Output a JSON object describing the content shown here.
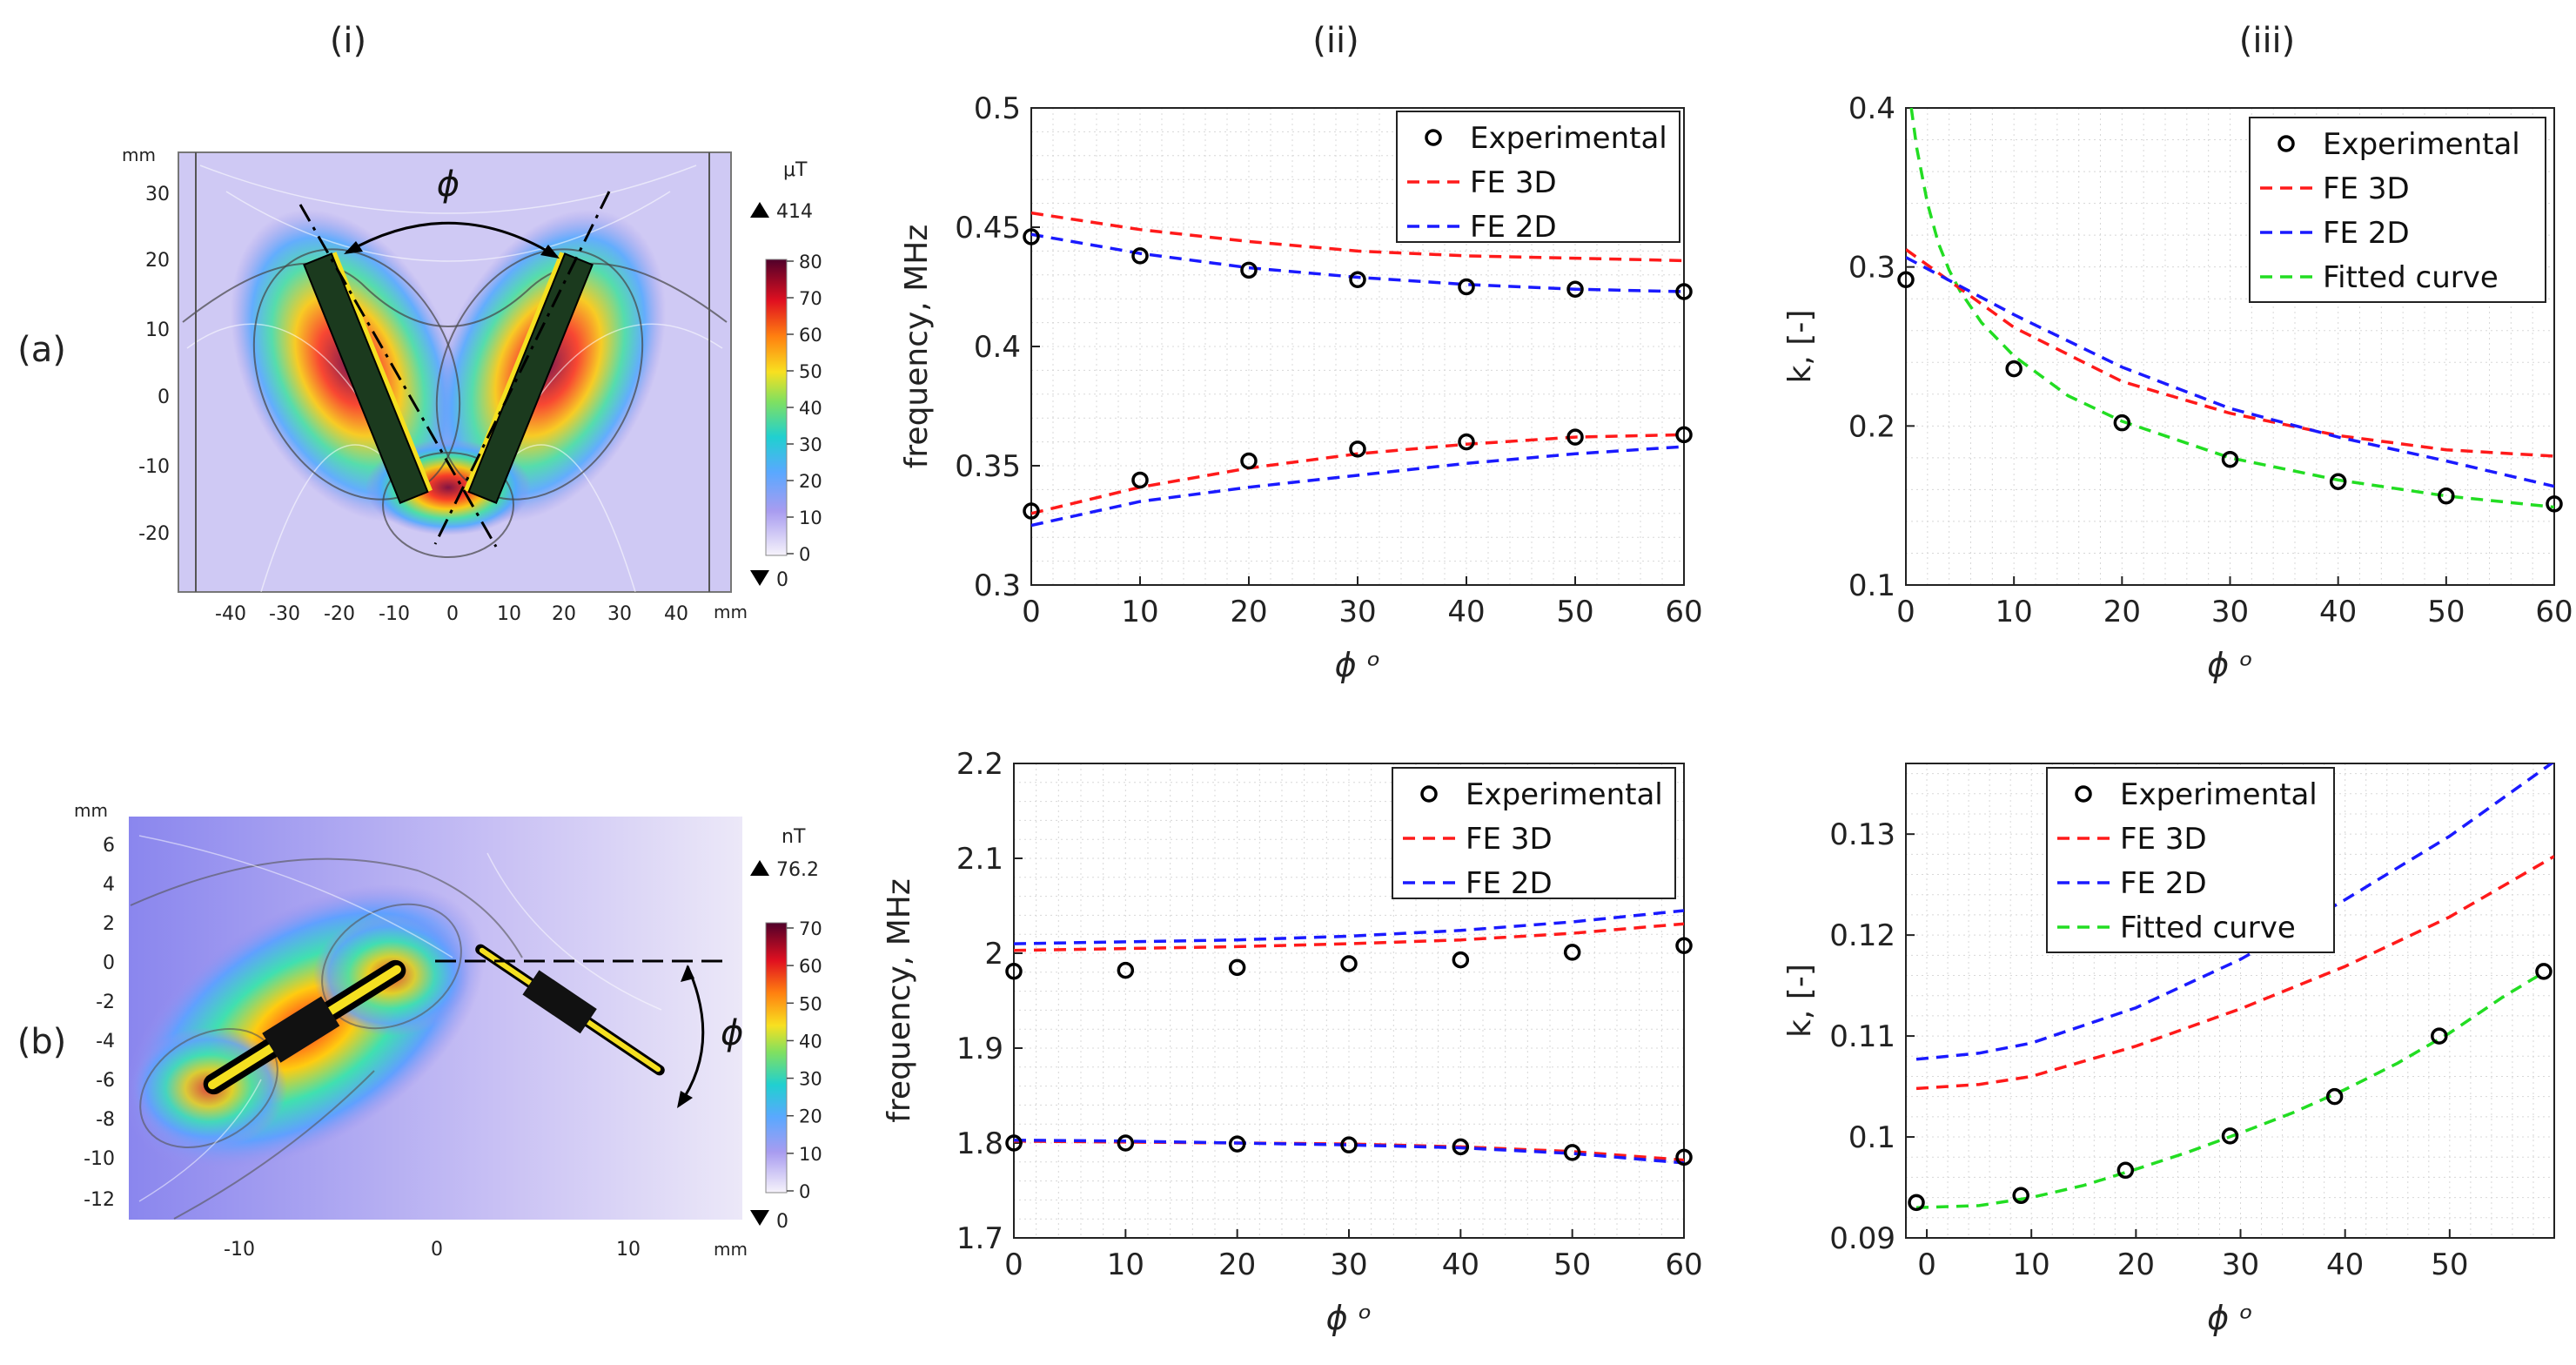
{
  "columns": {
    "i": "(i)",
    "ii": "(ii)",
    "iii": "(iii)"
  },
  "rows": {
    "a": "(a)",
    "b": "(b)"
  },
  "maps": [
    {
      "id": "a",
      "unit_label": "mm",
      "phi_label": "ϕ",
      "x_ticks": [
        "-40",
        "-30",
        "-20",
        "-10",
        "0",
        "10",
        "20",
        "30",
        "40"
      ],
      "y_ticks": [
        "30",
        "20",
        "10",
        "0",
        "-10",
        "-20"
      ],
      "colorbar": {
        "unit": "μT",
        "max_marker": "414",
        "min_marker": "0",
        "ticks": [
          "80",
          "70",
          "60",
          "50",
          "40",
          "30",
          "20",
          "10",
          "0"
        ]
      }
    },
    {
      "id": "b",
      "unit_label": "mm",
      "phi_label": "ϕ",
      "x_ticks": [
        "-10",
        "0",
        "10"
      ],
      "y_ticks": [
        "6",
        "4",
        "2",
        "0",
        "-2",
        "-4",
        "-6",
        "-8",
        "-10",
        "-12"
      ],
      "colorbar": {
        "unit": "nT",
        "max_marker": "76.2",
        "min_marker": "0",
        "ticks": [
          "70",
          "60",
          "50",
          "40",
          "30",
          "20",
          "10",
          "0"
        ]
      }
    }
  ],
  "chart_data": [
    {
      "id": "a-ii",
      "type": "line",
      "xlabel": "ϕ ᵒ",
      "ylabel": "frequency, MHz",
      "xlim": [
        0,
        60
      ],
      "ylim": [
        0.3,
        0.5
      ],
      "xticks": [
        0,
        10,
        20,
        30,
        40,
        50,
        60
      ],
      "yticks": [
        0.3,
        0.35,
        0.4,
        0.45,
        0.5
      ],
      "ytick_labels": [
        "0.3",
        "0.35",
        "0.4",
        "0.45",
        "0.5"
      ],
      "legend": [
        "Experimental",
        "FE 3D",
        "FE 2D"
      ],
      "experimental": [
        {
          "x": [
            0,
            10,
            20,
            30,
            40,
            50,
            60
          ],
          "y": [
            0.446,
            0.438,
            0.432,
            0.428,
            0.425,
            0.424,
            0.423
          ]
        },
        {
          "x": [
            0,
            10,
            20,
            30,
            40,
            50,
            60
          ],
          "y": [
            0.331,
            0.344,
            0.352,
            0.357,
            0.36,
            0.362,
            0.363
          ]
        }
      ],
      "fe3d": [
        {
          "x": [
            0,
            10,
            20,
            30,
            40,
            50,
            60
          ],
          "y": [
            0.456,
            0.449,
            0.444,
            0.44,
            0.438,
            0.437,
            0.436
          ]
        },
        {
          "x": [
            0,
            10,
            20,
            30,
            40,
            50,
            60
          ],
          "y": [
            0.33,
            0.341,
            0.349,
            0.355,
            0.359,
            0.362,
            0.363
          ]
        }
      ],
      "fe2d": [
        {
          "x": [
            0,
            10,
            20,
            30,
            40,
            50,
            60
          ],
          "y": [
            0.447,
            0.439,
            0.433,
            0.429,
            0.426,
            0.424,
            0.423
          ]
        },
        {
          "x": [
            0,
            10,
            20,
            30,
            40,
            50,
            60
          ],
          "y": [
            0.325,
            0.335,
            0.341,
            0.346,
            0.351,
            0.355,
            0.358
          ]
        }
      ]
    },
    {
      "id": "a-iii",
      "type": "line",
      "xlabel": "ϕ ᵒ",
      "ylabel": "k, [-]",
      "xlim": [
        0,
        60
      ],
      "ylim": [
        0.1,
        0.4
      ],
      "xticks": [
        0,
        10,
        20,
        30,
        40,
        50,
        60
      ],
      "yticks": [
        0.1,
        0.2,
        0.3,
        0.4
      ],
      "ytick_labels": [
        "0.1",
        "0.2",
        "0.3",
        "0.4"
      ],
      "legend": [
        "Experimental",
        "FE 3D",
        "FE 2D",
        "Fitted curve"
      ],
      "experimental": [
        {
          "x": [
            0,
            10,
            20,
            30,
            40,
            50,
            60
          ],
          "y": [
            0.292,
            0.236,
            0.202,
            0.179,
            0.165,
            0.156,
            0.151
          ]
        }
      ],
      "fe3d": [
        {
          "x": [
            0,
            10,
            20,
            30,
            40,
            50,
            60
          ],
          "y": [
            0.311,
            0.262,
            0.228,
            0.208,
            0.194,
            0.185,
            0.181
          ]
        }
      ],
      "fe2d": [
        {
          "x": [
            0,
            10,
            20,
            30,
            40,
            50,
            60
          ],
          "y": [
            0.306,
            0.27,
            0.237,
            0.211,
            0.193,
            0.178,
            0.162
          ]
        }
      ],
      "fitted": [
        {
          "x": [
            0.5,
            1,
            2,
            3,
            4,
            5,
            7,
            10,
            15,
            20,
            30,
            40,
            50,
            60
          ],
          "y": [
            0.4,
            0.375,
            0.34,
            0.315,
            0.298,
            0.285,
            0.265,
            0.244,
            0.219,
            0.203,
            0.18,
            0.166,
            0.156,
            0.149
          ]
        }
      ]
    },
    {
      "id": "b-ii",
      "type": "line",
      "xlabel": "ϕ ᵒ",
      "ylabel": "frequency, MHz",
      "xlim": [
        0,
        60
      ],
      "ylim": [
        1.7,
        2.2
      ],
      "xticks": [
        0,
        10,
        20,
        30,
        40,
        50,
        60
      ],
      "yticks": [
        1.7,
        1.8,
        1.9,
        2,
        2.1,
        2.2
      ],
      "ytick_labels": [
        "1.7",
        "1.8",
        "1.9",
        "2",
        "2.1",
        "2.2"
      ],
      "legend": [
        "Experimental",
        "FE 3D",
        "FE 2D"
      ],
      "experimental": [
        {
          "x": [
            0,
            10,
            20,
            30,
            40,
            50,
            60
          ],
          "y": [
            1.981,
            1.982,
            1.985,
            1.989,
            1.993,
            2.001,
            2.008
          ]
        },
        {
          "x": [
            0,
            10,
            20,
            30,
            40,
            50,
            60
          ],
          "y": [
            1.8,
            1.8,
            1.799,
            1.798,
            1.796,
            1.79,
            1.785
          ]
        }
      ],
      "fe3d": [
        {
          "x": [
            0,
            10,
            20,
            30,
            40,
            50,
            60
          ],
          "y": [
            2.003,
            2.005,
            2.007,
            2.01,
            2.014,
            2.021,
            2.031
          ]
        },
        {
          "x": [
            0,
            10,
            20,
            30,
            40,
            50,
            60
          ],
          "y": [
            1.802,
            1.801,
            1.8,
            1.799,
            1.796,
            1.791,
            1.782
          ]
        }
      ],
      "fe2d": [
        {
          "x": [
            0,
            10,
            20,
            30,
            40,
            50,
            60
          ],
          "y": [
            2.01,
            2.012,
            2.014,
            2.018,
            2.024,
            2.033,
            2.045
          ]
        },
        {
          "x": [
            0,
            10,
            20,
            30,
            40,
            50,
            60
          ],
          "y": [
            1.803,
            1.802,
            1.8,
            1.798,
            1.795,
            1.789,
            1.779
          ]
        }
      ]
    },
    {
      "id": "b-iii",
      "type": "line",
      "xlabel": "ϕ ᵒ",
      "ylabel": "k, [-]",
      "xlim": [
        -2,
        60
      ],
      "ylim": [
        0.09,
        0.137
      ],
      "xticks": [
        0,
        10,
        20,
        30,
        40,
        50
      ],
      "yticks": [
        0.09,
        0.1,
        0.11,
        0.12,
        0.13
      ],
      "ytick_labels": [
        "0.09",
        "0.1",
        "0.11",
        "0.12",
        "0.13"
      ],
      "legend": [
        "Experimental",
        "FE 3D",
        "FE 2D",
        "Fitted curve"
      ],
      "experimental": [
        {
          "x": [
            -1,
            9,
            19,
            29,
            39,
            49,
            59
          ],
          "y": [
            0.0935,
            0.0942,
            0.0967,
            0.1001,
            0.104,
            0.11,
            0.1164
          ]
        }
      ],
      "fe3d": [
        {
          "x": [
            -1,
            5,
            10,
            20,
            30,
            40,
            50,
            60
          ],
          "y": [
            0.1048,
            0.1052,
            0.106,
            0.109,
            0.1127,
            0.1169,
            0.1218,
            0.1278
          ]
        }
      ],
      "fe2d": [
        {
          "x": [
            -1,
            5,
            10,
            20,
            30,
            40,
            50,
            60
          ],
          "y": [
            0.1077,
            0.1083,
            0.1093,
            0.1128,
            0.1176,
            0.1235,
            0.1298,
            0.1372
          ]
        }
      ],
      "fitted": [
        {
          "x": [
            -1,
            5,
            10,
            15,
            20,
            25,
            30,
            35,
            40,
            45,
            50,
            55,
            59
          ],
          "y": [
            0.093,
            0.0932,
            0.094,
            0.0952,
            0.0968,
            0.0985,
            0.1004,
            0.1024,
            0.1047,
            0.1073,
            0.1103,
            0.1138,
            0.1163
          ]
        }
      ]
    }
  ],
  "colors": {
    "fe3d": "#ff1a1a",
    "fe2d": "#1a1aff",
    "fitted": "#22dd22",
    "exp": "#000000"
  }
}
